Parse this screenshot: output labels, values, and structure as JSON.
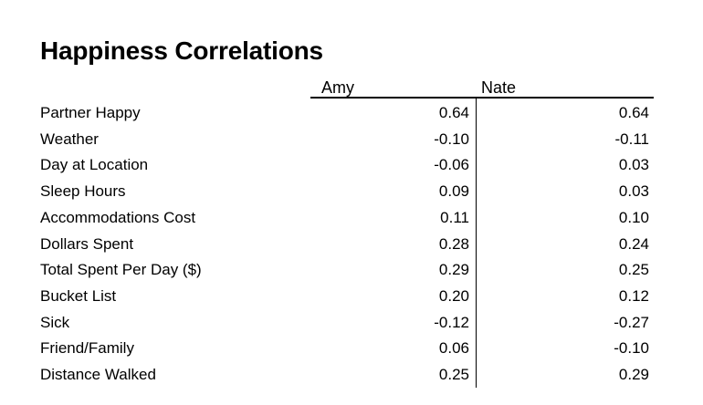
{
  "chart_data": {
    "type": "table",
    "title": "Happiness Correlations",
    "columns": [
      "Amy",
      "Nate"
    ],
    "rows": [
      {
        "label": "Partner Happy",
        "amy": "0.64",
        "nate": "0.64"
      },
      {
        "label": "Weather",
        "amy": "-0.10",
        "nate": "-0.11"
      },
      {
        "label": "Day at Location",
        "amy": "-0.06",
        "nate": "0.03"
      },
      {
        "label": "Sleep Hours",
        "amy": "0.09",
        "nate": "0.03"
      },
      {
        "label": "Accommodations Cost",
        "amy": "0.11",
        "nate": "0.10"
      },
      {
        "label": "Dollars Spent",
        "amy": "0.28",
        "nate": "0.24"
      },
      {
        "label": "Total Spent Per Day ($)",
        "amy": "0.29",
        "nate": "0.25"
      },
      {
        "label": "Bucket List",
        "amy": "0.20",
        "nate": "0.12"
      },
      {
        "label": "Sick",
        "amy": "-0.12",
        "nate": "-0.27"
      },
      {
        "label": "Friend/Family",
        "amy": "0.06",
        "nate": "-0.10"
      },
      {
        "label": "Distance Walked",
        "amy": "0.25",
        "nate": "0.29"
      }
    ]
  }
}
